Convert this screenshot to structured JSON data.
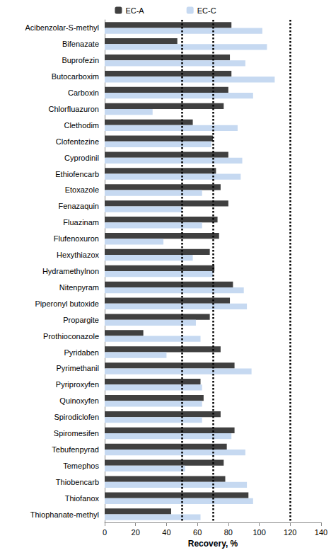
{
  "chart_data": {
    "type": "bar",
    "orientation": "horizontal",
    "x_label": "Recovery, %",
    "categories": [
      "Acibenzolar-S-methyl",
      "Bifenazate",
      "Buprofezin",
      "Butocarboxim",
      "Carboxin",
      "Chlorfluazuron",
      "Clethodim",
      "Clofentezine",
      "Cyprodinil",
      "Ethiofencarb",
      "Etoxazole",
      "Fenazaquin",
      "Fluazinam",
      "Flufenoxuron",
      "Hexythiazox",
      "Hydramethylnon",
      "Nitenpyram",
      "Piperonyl butoxide",
      "Propargite",
      "Prothioconazole",
      "Pyridaben",
      "Pyrimethanil",
      "Pyriproxyfen",
      "Quinoxyfen",
      "Spirodiclofen",
      "Spiromesifen",
      "Tebufenpyrad",
      "Temephos",
      "Thiobencarb",
      "Thiofanox",
      "Thiophanate-methyl"
    ],
    "series": [
      {
        "name": "EC-A",
        "color": "#404040",
        "values": [
          82,
          47,
          81,
          82,
          80,
          77,
          57,
          70,
          80,
          72,
          75,
          80,
          73,
          74,
          68,
          71,
          83,
          81,
          68,
          25,
          75,
          84,
          62,
          64,
          75,
          84,
          79,
          77,
          78,
          93,
          43
        ]
      },
      {
        "name": "EC-C",
        "color": "#c6d9f1",
        "values": [
          102,
          105,
          91,
          110,
          96,
          31,
          86,
          69,
          89,
          88,
          63,
          50,
          63,
          38,
          57,
          70,
          90,
          92,
          59,
          62,
          40,
          95,
          63,
          63,
          63,
          82,
          91,
          52,
          92,
          96,
          62
        ]
      }
    ],
    "reference_lines": [
      50,
      70,
      120
    ],
    "xlim": [
      0,
      140
    ],
    "xticks": [
      0,
      20,
      40,
      60,
      80,
      100,
      120,
      140
    ],
    "legend": "top",
    "grid": false
  }
}
